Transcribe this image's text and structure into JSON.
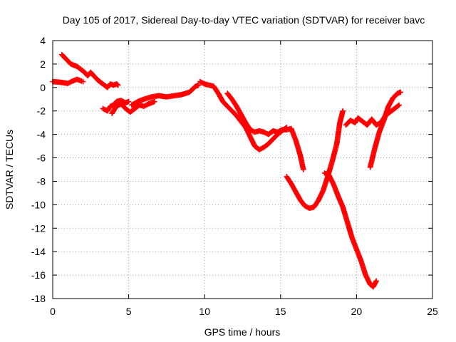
{
  "chart_data": {
    "type": "scatter",
    "title": "Day 105 of 2017, Sidereal Day-to-day VTEC variation (SDTVAR) for receiver bavc",
    "xlabel": "GPS time / hours",
    "ylabel": "SDTVAR / TECUs",
    "xlim": [
      0,
      25
    ],
    "ylim": [
      -18,
      4
    ],
    "xticks": [
      0,
      5,
      10,
      15,
      20,
      25
    ],
    "yticks": [
      4,
      2,
      0,
      -2,
      -4,
      -6,
      -8,
      -10,
      -12,
      -14,
      -16,
      -18
    ],
    "grid": true,
    "legend": "none",
    "marker": "plus",
    "color": "#ff0000",
    "series": [
      {
        "segments": [
          [
            [
              0.0,
              0.5
            ],
            [
              0.5,
              0.45
            ],
            [
              1.0,
              0.35
            ],
            [
              1.3,
              0.55
            ],
            [
              1.6,
              0.7
            ],
            [
              1.9,
              0.55
            ],
            [
              2.0,
              0.5
            ]
          ],
          [
            [
              0.6,
              2.8
            ],
            [
              0.9,
              2.4
            ],
            [
              1.2,
              2.0
            ],
            [
              1.6,
              1.8
            ],
            [
              1.9,
              1.5
            ],
            [
              2.1,
              1.3
            ],
            [
              2.3,
              1.0
            ],
            [
              2.5,
              1.3
            ],
            [
              2.7,
              1.0
            ],
            [
              3.0,
              0.6
            ],
            [
              3.3,
              0.3
            ],
            [
              3.6,
              0.0
            ],
            [
              3.8,
              0.3
            ],
            [
              4.0,
              0.2
            ],
            [
              4.2,
              0.3
            ],
            [
              4.3,
              0.2
            ]
          ],
          [
            [
              3.3,
              -1.8
            ],
            [
              3.6,
              -2.0
            ],
            [
              3.8,
              -1.6
            ],
            [
              4.0,
              -1.5
            ],
            [
              4.2,
              -1.2
            ],
            [
              4.5,
              -1.1
            ],
            [
              4.8,
              -1.3
            ],
            [
              5.0,
              -1.2
            ]
          ],
          [
            [
              3.9,
              -2.2
            ],
            [
              4.2,
              -1.6
            ],
            [
              4.5,
              -1.4
            ],
            [
              4.8,
              -1.8
            ],
            [
              5.1,
              -2.1
            ],
            [
              5.4,
              -1.8
            ],
            [
              5.7,
              -1.5
            ],
            [
              6.0,
              -1.6
            ],
            [
              6.3,
              -1.4
            ],
            [
              6.7,
              -1.2
            ]
          ],
          [
            [
              5.2,
              -1.5
            ],
            [
              5.6,
              -1.2
            ],
            [
              6.0,
              -1.0
            ],
            [
              6.5,
              -0.8
            ],
            [
              7.0,
              -0.7
            ],
            [
              7.5,
              -0.8
            ],
            [
              8.0,
              -0.7
            ],
            [
              8.5,
              -0.6
            ],
            [
              9.0,
              -0.4
            ],
            [
              9.4,
              0.1
            ],
            [
              9.6,
              0.2
            ]
          ],
          [
            [
              9.7,
              0.5
            ],
            [
              10.0,
              0.3
            ],
            [
              10.3,
              0.2
            ],
            [
              10.6,
              0.1
            ],
            [
              10.9,
              -0.5
            ],
            [
              11.2,
              -1.2
            ],
            [
              11.5,
              -1.6
            ],
            [
              11.8,
              -2.0
            ],
            [
              12.1,
              -2.4
            ],
            [
              12.4,
              -2.9
            ],
            [
              12.7,
              -3.4
            ],
            [
              13.0,
              -4.2
            ],
            [
              13.3,
              -5.0
            ],
            [
              13.6,
              -5.3
            ],
            [
              13.9,
              -5.1
            ],
            [
              14.2,
              -4.8
            ],
            [
              14.5,
              -4.4
            ],
            [
              14.8,
              -4.0
            ],
            [
              15.1,
              -3.7
            ],
            [
              15.4,
              -3.4
            ]
          ],
          [
            [
              11.5,
              -0.5
            ],
            [
              11.8,
              -1.0
            ],
            [
              12.1,
              -1.6
            ],
            [
              12.4,
              -2.3
            ],
            [
              12.7,
              -3.0
            ],
            [
              13.0,
              -3.6
            ],
            [
              13.3,
              -3.8
            ],
            [
              13.6,
              -3.7
            ],
            [
              13.9,
              -3.8
            ],
            [
              14.2,
              -4.0
            ],
            [
              14.5,
              -3.7
            ],
            [
              14.8,
              -3.8
            ],
            [
              15.1,
              -3.6
            ],
            [
              15.4,
              -3.6
            ],
            [
              15.7,
              -3.5
            ],
            [
              16.0,
              -4.5
            ],
            [
              16.3,
              -5.8
            ],
            [
              16.5,
              -7.0
            ]
          ],
          [
            [
              15.4,
              -7.6
            ],
            [
              15.7,
              -8.2
            ],
            [
              16.0,
              -8.9
            ],
            [
              16.3,
              -9.6
            ],
            [
              16.6,
              -10.1
            ],
            [
              16.9,
              -10.3
            ],
            [
              17.2,
              -10.2
            ],
            [
              17.5,
              -9.6
            ],
            [
              17.8,
              -8.8
            ],
            [
              18.1,
              -7.6
            ],
            [
              18.4,
              -6.3
            ],
            [
              18.7,
              -4.8
            ],
            [
              18.9,
              -3.0
            ],
            [
              19.1,
              -2.0
            ]
          ],
          [
            [
              17.9,
              -7.3
            ],
            [
              18.2,
              -7.5
            ],
            [
              18.5,
              -8.3
            ],
            [
              18.8,
              -9.3
            ],
            [
              19.1,
              -10.2
            ],
            [
              19.4,
              -11.5
            ],
            [
              19.7,
              -12.8
            ],
            [
              20.0,
              -13.8
            ],
            [
              20.3,
              -14.8
            ],
            [
              20.6,
              -16.0
            ],
            [
              20.9,
              -16.8
            ],
            [
              21.1,
              -17.0
            ],
            [
              21.3,
              -16.5
            ]
          ],
          [
            [
              19.3,
              -3.2
            ],
            [
              19.6,
              -2.8
            ],
            [
              19.9,
              -3.0
            ],
            [
              20.1,
              -2.6
            ],
            [
              20.4,
              -2.9
            ],
            [
              20.7,
              -3.2
            ],
            [
              21.0,
              -2.7
            ],
            [
              21.3,
              -3.2
            ],
            [
              21.6,
              -3.0
            ],
            [
              21.9,
              -2.4
            ],
            [
              22.2,
              -2.1
            ],
            [
              22.5,
              -1.8
            ],
            [
              22.8,
              -1.5
            ]
          ],
          [
            [
              20.9,
              -6.8
            ],
            [
              21.2,
              -5.2
            ],
            [
              21.5,
              -3.8
            ],
            [
              21.8,
              -2.8
            ],
            [
              22.1,
              -1.6
            ],
            [
              22.4,
              -0.9
            ],
            [
              22.7,
              -0.5
            ],
            [
              22.9,
              -0.4
            ]
          ]
        ]
      }
    ]
  }
}
